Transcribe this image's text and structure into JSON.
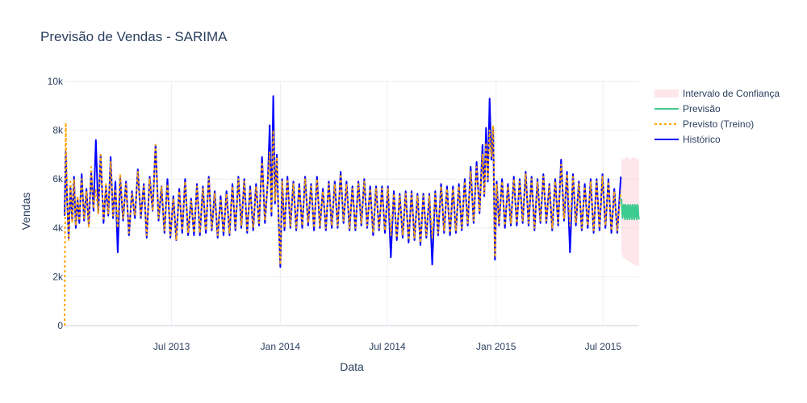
{
  "chart_data": {
    "type": "line",
    "title": "Previsão de Vendas - SARIMA",
    "xlabel": "Data",
    "ylabel": "Vendas",
    "x_range": [
      "2013-01-01",
      "2015-08-31"
    ],
    "ylim": [
      0,
      10000
    ],
    "y_ticks": [
      0,
      2000,
      4000,
      6000,
      8000,
      10000
    ],
    "y_tick_labels": [
      "0",
      "2k",
      "4k",
      "6k",
      "8k",
      "10k"
    ],
    "x_ticks": [
      "2013-07-01",
      "2014-01-01",
      "2014-07-01",
      "2015-01-01",
      "2015-07-01"
    ],
    "x_tick_labels": [
      "Jul 2013",
      "Jan 2014",
      "Jul 2014",
      "Jan 2015",
      "Jul 2015"
    ],
    "grid": true,
    "legend_position": "top-right",
    "series": [
      {
        "name": "Intervalo de Confiança",
        "kind": "band",
        "color": "#ffd6dc",
        "x": [
          "2015-08-01",
          "2015-08-04",
          "2015-08-07",
          "2015-08-10",
          "2015-08-13",
          "2015-08-16",
          "2015-08-19",
          "2015-08-22",
          "2015-08-25",
          "2015-08-28",
          "2015-08-31"
        ],
        "lower": [
          3000,
          2800,
          2750,
          2700,
          2650,
          2600,
          2550,
          2500,
          2480,
          2450,
          2420
        ],
        "upper": [
          6900,
          6800,
          6850,
          6900,
          6850,
          6800,
          6850,
          6900,
          6850,
          6800,
          6850
        ]
      },
      {
        "name": "Previsão",
        "kind": "line",
        "color": "#3ecb8f",
        "x": [
          "2015-08-01",
          "2015-08-02",
          "2015-08-03",
          "2015-08-04",
          "2015-08-05",
          "2015-08-06",
          "2015-08-07",
          "2015-08-08",
          "2015-08-09",
          "2015-08-10",
          "2015-08-11",
          "2015-08-12",
          "2015-08-13",
          "2015-08-14",
          "2015-08-15",
          "2015-08-16",
          "2015-08-17",
          "2015-08-18",
          "2015-08-19",
          "2015-08-20",
          "2015-08-21",
          "2015-08-22",
          "2015-08-23",
          "2015-08-24",
          "2015-08-25",
          "2015-08-26",
          "2015-08-27",
          "2015-08-28",
          "2015-08-29",
          "2015-08-30",
          "2015-08-31"
        ],
        "y": [
          5200,
          4700,
          4400,
          4900,
          4950,
          4500,
          4350,
          4950,
          4900,
          4450,
          4350,
          4950,
          4900,
          4450,
          4350,
          4950,
          4900,
          4450,
          4350,
          4950,
          4900,
          4450,
          4350,
          4950,
          4900,
          4450,
          4350,
          4950,
          4900,
          4450,
          4350
        ]
      },
      {
        "name": "Previsto (Treino)",
        "kind": "line",
        "color": "#ffa500",
        "dash": true,
        "x": [
          "2013-01-01",
          "2013-01-02",
          "2013-01-03",
          "2013-01-05",
          "2013-01-08",
          "2013-01-11",
          "2013-01-14",
          "2013-01-17",
          "2013-01-20",
          "2013-01-23",
          "2013-01-26",
          "2013-01-30",
          "2013-02-03",
          "2013-02-07",
          "2013-02-11",
          "2013-02-15",
          "2013-02-19",
          "2013-02-23",
          "2013-02-27",
          "2013-03-03",
          "2013-03-08",
          "2013-03-12",
          "2013-03-16",
          "2013-03-20",
          "2013-03-24",
          "2013-03-28",
          "2013-04-01",
          "2013-04-05",
          "2013-04-10",
          "2013-04-15",
          "2013-04-20",
          "2013-04-25",
          "2013-04-30",
          "2013-05-05",
          "2013-05-10",
          "2013-05-15",
          "2013-05-20",
          "2013-05-25",
          "2013-05-30",
          "2013-06-04",
          "2013-06-09",
          "2013-06-14",
          "2013-06-19",
          "2013-06-24",
          "2013-06-29",
          "2013-07-04",
          "2013-07-09",
          "2013-07-14",
          "2013-07-19",
          "2013-07-24",
          "2013-07-29",
          "2013-08-03",
          "2013-08-08",
          "2013-08-13",
          "2013-08-18",
          "2013-08-23",
          "2013-08-28",
          "2013-09-02",
          "2013-09-07",
          "2013-09-12",
          "2013-09-17",
          "2013-09-22",
          "2013-09-27",
          "2013-10-02",
          "2013-10-07",
          "2013-10-12",
          "2013-10-17",
          "2013-10-22",
          "2013-10-27",
          "2013-11-01",
          "2013-11-06",
          "2013-11-11",
          "2013-11-16",
          "2013-11-21",
          "2013-11-26",
          "2013-12-01",
          "2013-12-06",
          "2013-12-11",
          "2013-12-14",
          "2013-12-17",
          "2013-12-20",
          "2013-12-23",
          "2013-12-26",
          "2013-12-29",
          "2014-01-01",
          "2014-01-04",
          "2014-01-08",
          "2014-01-13",
          "2014-01-18",
          "2014-01-23",
          "2014-01-28",
          "2014-02-02",
          "2014-02-07",
          "2014-02-12",
          "2014-02-17",
          "2014-02-22",
          "2014-02-27",
          "2014-03-04",
          "2014-03-09",
          "2014-03-14",
          "2014-03-19",
          "2014-03-24",
          "2014-03-29",
          "2014-04-03",
          "2014-04-08",
          "2014-04-13",
          "2014-04-18",
          "2014-04-23",
          "2014-04-28",
          "2014-05-03",
          "2014-05-08",
          "2014-05-13",
          "2014-05-18",
          "2014-05-23",
          "2014-05-28",
          "2014-06-02",
          "2014-06-07",
          "2014-06-12",
          "2014-06-17",
          "2014-06-22",
          "2014-06-27",
          "2014-07-02",
          "2014-07-07",
          "2014-07-12",
          "2014-07-17",
          "2014-07-22",
          "2014-07-27",
          "2014-08-01",
          "2014-08-06",
          "2014-08-11",
          "2014-08-16",
          "2014-08-21",
          "2014-08-26",
          "2014-08-31",
          "2014-09-05",
          "2014-09-10",
          "2014-09-15",
          "2014-09-20",
          "2014-09-25",
          "2014-09-30",
          "2014-10-05",
          "2014-10-10",
          "2014-10-15",
          "2014-10-20",
          "2014-10-25",
          "2014-10-30",
          "2014-11-04",
          "2014-11-09",
          "2014-11-14",
          "2014-11-19",
          "2014-11-24",
          "2014-11-29",
          "2014-12-04",
          "2014-12-09",
          "2014-12-12",
          "2014-12-15",
          "2014-12-18",
          "2014-12-21",
          "2014-12-24",
          "2014-12-27",
          "2014-12-30",
          "2015-01-02",
          "2015-01-06",
          "2015-01-11",
          "2015-01-16",
          "2015-01-21",
          "2015-01-26",
          "2015-01-31",
          "2015-02-05",
          "2015-02-10",
          "2015-02-15",
          "2015-02-20",
          "2015-02-25",
          "2015-03-02",
          "2015-03-07",
          "2015-03-12",
          "2015-03-17",
          "2015-03-22",
          "2015-03-27",
          "2015-04-01",
          "2015-04-06",
          "2015-04-11",
          "2015-04-16",
          "2015-04-21",
          "2015-04-26",
          "2015-05-01",
          "2015-05-06",
          "2015-05-11",
          "2015-05-16",
          "2015-05-21",
          "2015-05-26",
          "2015-05-31",
          "2015-06-05",
          "2015-06-10",
          "2015-06-15",
          "2015-06-20",
          "2015-06-25",
          "2015-06-30",
          "2015-07-05",
          "2015-07-10",
          "2015-07-15",
          "2015-07-20",
          "2015-07-25",
          "2015-07-31"
        ],
        "y": [
          0,
          4500,
          8300,
          5600,
          3500,
          5900,
          4200,
          6000,
          4100,
          5300,
          4300,
          6000,
          4400,
          5500,
          4000,
          6500,
          4800,
          5600,
          4600,
          7000,
          4300,
          5800,
          4600,
          6700,
          4500,
          5600,
          4000,
          6200,
          4400,
          5800,
          3800,
          5400,
          4500,
          6300,
          4500,
          5700,
          3700,
          6000,
          4700,
          7400,
          4400,
          5700,
          3900,
          5800,
          3700,
          5200,
          3500,
          5500,
          3900,
          5900,
          3800,
          5100,
          3800,
          5700,
          3800,
          5600,
          3900,
          6000,
          4000,
          5400,
          3700,
          5200,
          3800,
          5400,
          3800,
          5700,
          4000,
          6000,
          4100,
          5900,
          3900,
          5600,
          4000,
          5700,
          4200,
          6700,
          4300,
          5900,
          7100,
          4600,
          8000,
          5100,
          6900,
          4500,
          2500,
          5900,
          4000,
          6000,
          4100,
          5800,
          4000,
          5700,
          4100,
          6000,
          4200,
          5700,
          4000,
          6000,
          4100,
          5500,
          4000,
          5800,
          4100,
          5800,
          4100,
          6200,
          4300,
          5800,
          4000,
          5600,
          4000,
          5800,
          4200,
          5900,
          4100,
          5600,
          3800,
          5600,
          4000,
          5600,
          3900,
          5600,
          3700,
          5400,
          3600,
          5300,
          3700,
          5400,
          3500,
          5400,
          3600,
          5300,
          3400,
          5300,
          3700,
          5300,
          3600,
          5400,
          3800,
          5700,
          3900,
          5600,
          3800,
          5600,
          3900,
          5700,
          4000,
          5900,
          4200,
          6300,
          4300,
          6500,
          4700,
          7000,
          5400,
          7500,
          6000,
          8000,
          6900,
          8200,
          2800,
          5800,
          4200,
          5900,
          4100,
          5700,
          4200,
          6000,
          4200,
          5900,
          4300,
          6200,
          4200,
          6000,
          4000,
          5900,
          4300,
          6100,
          4300,
          5700,
          4000,
          5900,
          4200,
          6600,
          4400,
          6200,
          4100,
          6100,
          4200,
          5800,
          4000,
          5700,
          4100,
          5900,
          3900,
          5900,
          4000,
          6100,
          4100,
          5900,
          3900,
          5500,
          3900,
          5500
        ]
      },
      {
        "name": "Histórico",
        "kind": "line",
        "color": "#0000ff",
        "x": [
          "2013-01-01",
          "2013-01-03",
          "2013-01-05",
          "2013-01-08",
          "2013-01-11",
          "2013-01-14",
          "2013-01-17",
          "2013-01-20",
          "2013-01-23",
          "2013-01-26",
          "2013-01-30",
          "2013-02-03",
          "2013-02-07",
          "2013-02-11",
          "2013-02-15",
          "2013-02-19",
          "2013-02-23",
          "2013-02-27",
          "2013-03-03",
          "2013-03-08",
          "2013-03-12",
          "2013-03-16",
          "2013-03-20",
          "2013-03-24",
          "2013-03-28",
          "2013-04-01",
          "2013-04-05",
          "2013-04-10",
          "2013-04-15",
          "2013-04-20",
          "2013-04-25",
          "2013-04-30",
          "2013-05-05",
          "2013-05-10",
          "2013-05-15",
          "2013-05-20",
          "2013-05-25",
          "2013-05-30",
          "2013-06-04",
          "2013-06-09",
          "2013-06-14",
          "2013-06-19",
          "2013-06-24",
          "2013-06-29",
          "2013-07-04",
          "2013-07-09",
          "2013-07-14",
          "2013-07-19",
          "2013-07-24",
          "2013-07-29",
          "2013-08-03",
          "2013-08-08",
          "2013-08-13",
          "2013-08-18",
          "2013-08-23",
          "2013-08-28",
          "2013-09-02",
          "2013-09-07",
          "2013-09-12",
          "2013-09-17",
          "2013-09-22",
          "2013-09-27",
          "2013-10-02",
          "2013-10-07",
          "2013-10-12",
          "2013-10-17",
          "2013-10-22",
          "2013-10-27",
          "2013-11-01",
          "2013-11-06",
          "2013-11-11",
          "2013-11-16",
          "2013-11-21",
          "2013-11-26",
          "2013-12-01",
          "2013-12-06",
          "2013-12-11",
          "2013-12-14",
          "2013-12-17",
          "2013-12-20",
          "2013-12-23",
          "2013-12-26",
          "2013-12-29",
          "2014-01-01",
          "2014-01-04",
          "2014-01-08",
          "2014-01-13",
          "2014-01-18",
          "2014-01-23",
          "2014-01-28",
          "2014-02-02",
          "2014-02-07",
          "2014-02-12",
          "2014-02-17",
          "2014-02-22",
          "2014-02-27",
          "2014-03-04",
          "2014-03-09",
          "2014-03-14",
          "2014-03-19",
          "2014-03-24",
          "2014-03-29",
          "2014-04-03",
          "2014-04-08",
          "2014-04-13",
          "2014-04-18",
          "2014-04-23",
          "2014-04-28",
          "2014-05-03",
          "2014-05-08",
          "2014-05-13",
          "2014-05-18",
          "2014-05-23",
          "2014-05-28",
          "2014-06-02",
          "2014-06-07",
          "2014-06-12",
          "2014-06-17",
          "2014-06-22",
          "2014-06-27",
          "2014-07-02",
          "2014-07-07",
          "2014-07-12",
          "2014-07-17",
          "2014-07-22",
          "2014-07-27",
          "2014-08-01",
          "2014-08-06",
          "2014-08-11",
          "2014-08-16",
          "2014-08-21",
          "2014-08-26",
          "2014-08-31",
          "2014-09-05",
          "2014-09-10",
          "2014-09-15",
          "2014-09-20",
          "2014-09-25",
          "2014-09-30",
          "2014-10-05",
          "2014-10-10",
          "2014-10-15",
          "2014-10-20",
          "2014-10-25",
          "2014-10-30",
          "2014-11-04",
          "2014-11-09",
          "2014-11-14",
          "2014-11-19",
          "2014-11-24",
          "2014-11-29",
          "2014-12-04",
          "2014-12-09",
          "2014-12-12",
          "2014-12-15",
          "2014-12-18",
          "2014-12-21",
          "2014-12-24",
          "2014-12-27",
          "2014-12-30",
          "2015-01-02",
          "2015-01-06",
          "2015-01-11",
          "2015-01-16",
          "2015-01-21",
          "2015-01-26",
          "2015-01-31",
          "2015-02-05",
          "2015-02-10",
          "2015-02-15",
          "2015-02-20",
          "2015-02-25",
          "2015-03-02",
          "2015-03-07",
          "2015-03-12",
          "2015-03-17",
          "2015-03-22",
          "2015-03-27",
          "2015-04-01",
          "2015-04-06",
          "2015-04-11",
          "2015-04-16",
          "2015-04-21",
          "2015-04-26",
          "2015-05-01",
          "2015-05-06",
          "2015-05-11",
          "2015-05-16",
          "2015-05-21",
          "2015-05-26",
          "2015-05-31",
          "2015-06-05",
          "2015-06-10",
          "2015-06-15",
          "2015-06-20",
          "2015-06-25",
          "2015-06-30",
          "2015-07-05",
          "2015-07-10",
          "2015-07-15",
          "2015-07-20",
          "2015-07-25",
          "2015-07-31"
        ],
        "y": [
          4500,
          7100,
          5400,
          3600,
          5700,
          4300,
          6100,
          4000,
          5200,
          4200,
          6200,
          4300,
          5600,
          4100,
          6300,
          4700,
          7600,
          4600,
          7000,
          4200,
          5700,
          4500,
          6900,
          4400,
          5900,
          3000,
          6100,
          4300,
          5900,
          3700,
          5500,
          4400,
          6400,
          4400,
          5800,
          3600,
          6100,
          4700,
          7400,
          4300,
          5700,
          3800,
          6000,
          3600,
          5300,
          3500,
          5600,
          3800,
          6000,
          3700,
          5200,
          3700,
          5800,
          3700,
          5700,
          3800,
          6100,
          3900,
          5500,
          3600,
          5300,
          3700,
          5500,
          3700,
          5800,
          3900,
          6100,
          4000,
          6000,
          3800,
          5700,
          3900,
          5800,
          4100,
          6900,
          4200,
          6000,
          8200,
          4500,
          9400,
          5000,
          7000,
          4400,
          2400,
          6000,
          3900,
          6100,
          4000,
          5900,
          3900,
          5800,
          4000,
          6100,
          4100,
          5800,
          3900,
          6100,
          4000,
          5600,
          3900,
          5900,
          4000,
          5900,
          4000,
          6300,
          4200,
          5900,
          3900,
          5700,
          3900,
          5900,
          4100,
          6000,
          4000,
          5700,
          3700,
          5700,
          3900,
          5700,
          3800,
          5700,
          2800,
          5500,
          3500,
          5400,
          3600,
          5500,
          3400,
          5500,
          3500,
          5400,
          3300,
          5400,
          3600,
          5400,
          2500,
          5500,
          3700,
          5800,
          3800,
          5700,
          3700,
          5700,
          3800,
          5800,
          3900,
          6000,
          4100,
          6500,
          4200,
          6700,
          4600,
          7400,
          5300,
          8100,
          5900,
          9300,
          6800,
          8100,
          2700,
          5900,
          4100,
          6000,
          4000,
          5800,
          4100,
          6100,
          4100,
          6000,
          4200,
          6300,
          4100,
          6100,
          3900,
          6000,
          4200,
          6200,
          4200,
          5800,
          3900,
          6000,
          4100,
          6800,
          4300,
          6300,
          3000,
          6200,
          4100,
          5900,
          3900,
          5800,
          4000,
          6000,
          3800,
          6000,
          3900,
          6200,
          4000,
          6000,
          3800,
          5600,
          3800,
          6100
        ]
      }
    ],
    "legend": [
      "Intervalo de Confiança",
      "Previsão",
      "Previsto (Treino)",
      "Histórico"
    ]
  }
}
